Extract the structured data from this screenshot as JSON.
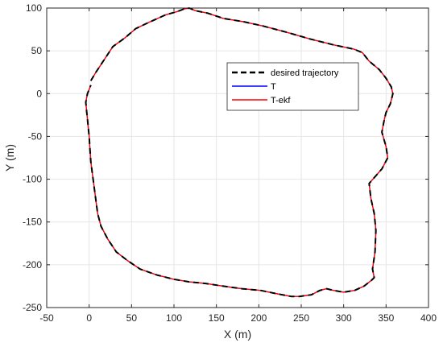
{
  "chart_data": {
    "type": "line",
    "title": "",
    "xlabel": "X (m)",
    "ylabel": "Y (m)",
    "xlim": [
      -50,
      400
    ],
    "ylim": [
      -250,
      100
    ],
    "xticks": [
      -50,
      0,
      50,
      100,
      150,
      200,
      250,
      300,
      350,
      400
    ],
    "yticks": [
      -250,
      -200,
      -150,
      -100,
      -50,
      0,
      50,
      100
    ],
    "grid": true,
    "legend_position": "upper-middle-right",
    "colors": {
      "desired": "#000000",
      "T": "#0000ff",
      "T_ekf": "#ff0000",
      "grid": "#e6e6e6",
      "axis": "#262626"
    },
    "series": [
      {
        "name": "desired trajectory",
        "style": "dashed",
        "x": [
          2,
          8,
          18,
          28,
          42,
          55,
          72,
          90,
          104,
          112,
          118,
          125,
          140,
          158,
          182,
          205,
          232,
          260,
          288,
          312,
          322,
          330,
          342,
          350,
          356,
          358,
          355,
          350,
          348,
          345,
          350,
          352,
          345,
          330,
          332,
          336,
          338,
          337,
          334,
          336,
          333,
          324,
          313,
          300,
          288,
          280,
          272,
          262,
          248,
          238,
          222,
          202,
          180,
          158,
          138,
          118,
          100,
          80,
          60,
          45,
          32,
          22,
          14,
          10,
          8,
          6,
          4,
          2,
          1,
          0,
          -1,
          -2,
          -3,
          -4,
          -2,
          2
        ],
        "y": [
          15,
          25,
          40,
          55,
          65,
          76,
          84,
          92,
          96,
          99,
          100,
          97,
          94,
          88,
          84,
          79,
          72,
          64,
          57,
          52,
          48,
          38,
          28,
          18,
          8,
          0,
          -12,
          -22,
          -30,
          -45,
          -62,
          -75,
          -88,
          -105,
          -122,
          -140,
          -160,
          -185,
          -205,
          -215,
          -218,
          -225,
          -230,
          -232,
          -230,
          -228,
          -230,
          -235,
          -237,
          -237,
          -234,
          -230,
          -228,
          -225,
          -222,
          -220,
          -217,
          -212,
          -205,
          -195,
          -185,
          -170,
          -155,
          -140,
          -125,
          -110,
          -95,
          -80,
          -65,
          -50,
          -40,
          -30,
          -20,
          -10,
          0,
          10
        ]
      },
      {
        "name": "T",
        "style": "solid"
      },
      {
        "name": "T-ekf",
        "style": "solid"
      }
    ]
  }
}
